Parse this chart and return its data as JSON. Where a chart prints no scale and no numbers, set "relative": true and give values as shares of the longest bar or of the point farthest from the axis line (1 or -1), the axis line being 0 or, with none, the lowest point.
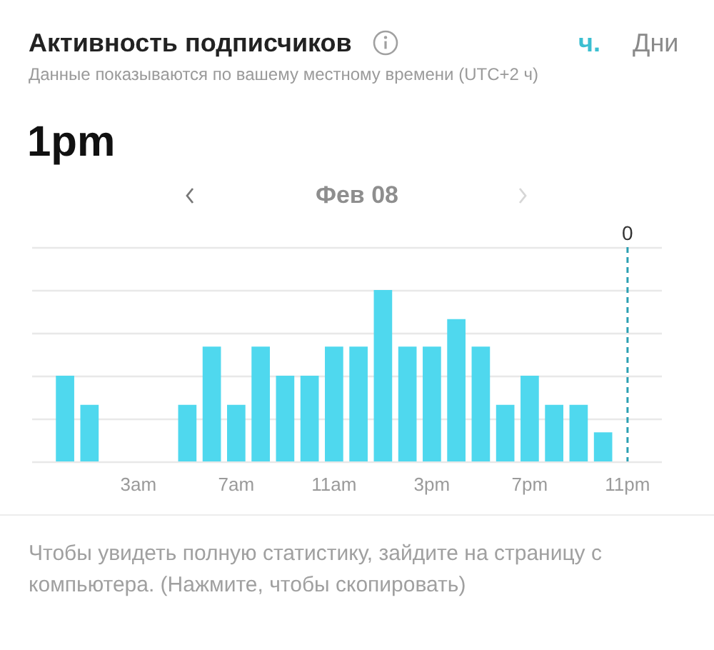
{
  "chart_data": {
    "type": "bar",
    "title": "Активность подписчиков",
    "subtitle": "Данные показываются по вашему местному времени (UTC+2 ч)",
    "categories": [
      null,
      null,
      null,
      "3am",
      null,
      null,
      null,
      "7am",
      null,
      null,
      null,
      "11am",
      null,
      null,
      null,
      "3pm",
      null,
      null,
      null,
      "7pm",
      null,
      null,
      null,
      "11pm"
    ],
    "values": [
      0.5,
      0.33,
      0,
      0,
      0,
      0.33,
      0.67,
      0.33,
      0.67,
      0.5,
      0.5,
      0.67,
      0.67,
      1,
      0.67,
      0.67,
      0.83,
      0.67,
      0.33,
      0.5,
      0.33,
      0.33,
      0.17,
      0
    ],
    "color": "#4fd8ee",
    "relative": true,
    "grid": "y",
    "ref_lines": [
      {
        "axis": "x",
        "value": "11pm",
        "label": "0",
        "color": "#2a9fb2",
        "line_style": "dashed"
      }
    ],
    "annotations": [
      "ч.",
      "Дни",
      "1pm",
      "Фев 08",
      "Чтобы увидеть полную статистику, зайдите на страницу с компьютера. (Нажмите, чтобы скопировать)"
    ]
  }
}
